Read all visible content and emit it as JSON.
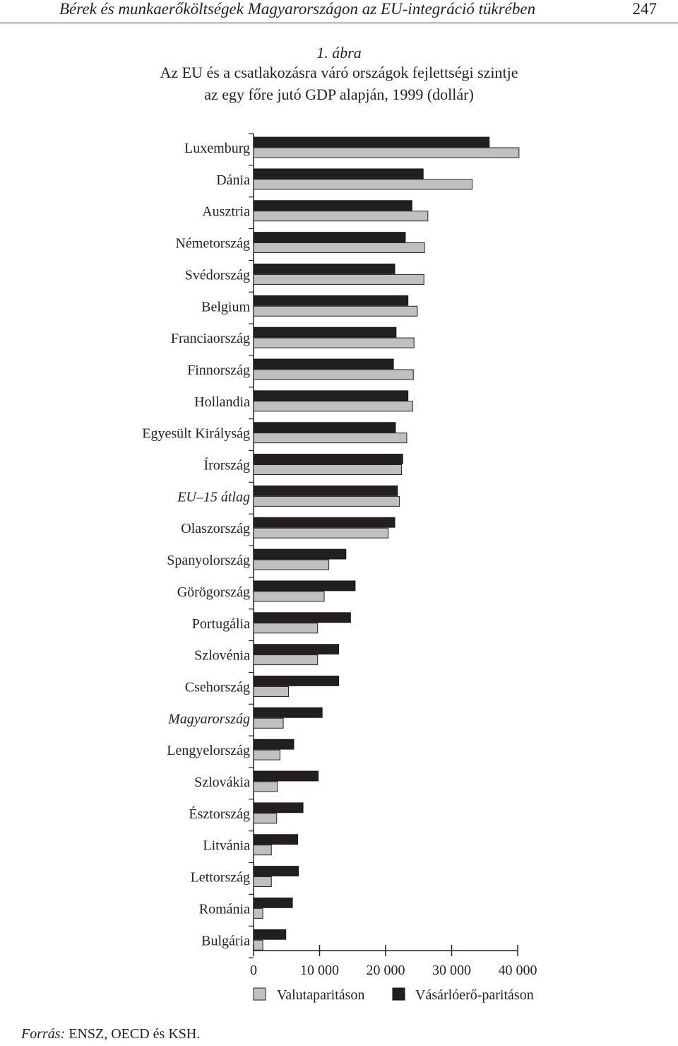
{
  "header": {
    "running_title": "Bérek és munkaerőköltségek Magyarországon az EU-integráció tükrében",
    "page_number": "247"
  },
  "caption": {
    "number": "1. ábra",
    "line1": "Az EU és a csatlakozásra váró országok fejlettségi szintje",
    "line2": "az egy főre jutó GDP alapján, 1999 (dollár)"
  },
  "footer": {
    "source_label": "Forrás:",
    "source_text": "ENSZ, OECD és KSH."
  },
  "colors": {
    "ppp": "#231f20",
    "exchange": "#c0c0c0"
  },
  "chart_data": {
    "type": "bar",
    "orientation": "horizontal",
    "title": "",
    "xlabel": "",
    "ylabel": "",
    "xlim": [
      0,
      40000
    ],
    "x_ticks": [
      0,
      10000,
      20000,
      30000,
      40000
    ],
    "x_tick_labels": [
      "0",
      "10 000",
      "20 000",
      "30 000",
      "40 000"
    ],
    "grid": false,
    "legend": "bottom",
    "categories": [
      {
        "label": "Luxemburg",
        "italic": false
      },
      {
        "label": "Dánia",
        "italic": false
      },
      {
        "label": "Ausztria",
        "italic": false
      },
      {
        "label": "Németország",
        "italic": false
      },
      {
        "label": "Svédország",
        "italic": false
      },
      {
        "label": "Belgium",
        "italic": false
      },
      {
        "label": "Franciaország",
        "italic": false
      },
      {
        "label": "Finnország",
        "italic": false
      },
      {
        "label": "Hollandia",
        "italic": false
      },
      {
        "label": "Egyesült Királyság",
        "italic": false
      },
      {
        "label": "Írország",
        "italic": false
      },
      {
        "label": "EU–15 átlag",
        "italic": true
      },
      {
        "label": "Olaszország",
        "italic": false
      },
      {
        "label": "Spanyolország",
        "italic": false
      },
      {
        "label": "Görögország",
        "italic": false
      },
      {
        "label": "Portugália",
        "italic": false
      },
      {
        "label": "Szlovénia",
        "italic": false
      },
      {
        "label": "Csehország",
        "italic": false
      },
      {
        "label": "Magyarország",
        "italic": true
      },
      {
        "label": "Lengyelország",
        "italic": false
      },
      {
        "label": "Szlovákia",
        "italic": false
      },
      {
        "label": "Észtország",
        "italic": false
      },
      {
        "label": "Litvánia",
        "italic": false
      },
      {
        "label": "Lettország",
        "italic": false
      },
      {
        "label": "Románia",
        "italic": false
      },
      {
        "label": "Bulgária",
        "italic": false
      }
    ],
    "series": [
      {
        "name": "Vásárlóerő-paritáson",
        "color": "#231f20",
        "values": [
          35700,
          25700,
          24000,
          23000,
          21400,
          23400,
          21600,
          21200,
          23400,
          21500,
          22600,
          21800,
          21400,
          14000,
          15400,
          14700,
          12900,
          12900,
          10400,
          6100,
          9800,
          7500,
          6700,
          6800,
          5900,
          4900
        ]
      },
      {
        "name": "Valutaparitáson",
        "color": "#c0c0c0",
        "values": [
          40200,
          33100,
          26400,
          25900,
          25800,
          24800,
          24300,
          24200,
          24100,
          23200,
          22400,
          22100,
          20400,
          11400,
          10700,
          9700,
          9700,
          5300,
          4500,
          4000,
          3600,
          3500,
          2700,
          2700,
          1400,
          1400
        ]
      }
    ]
  }
}
